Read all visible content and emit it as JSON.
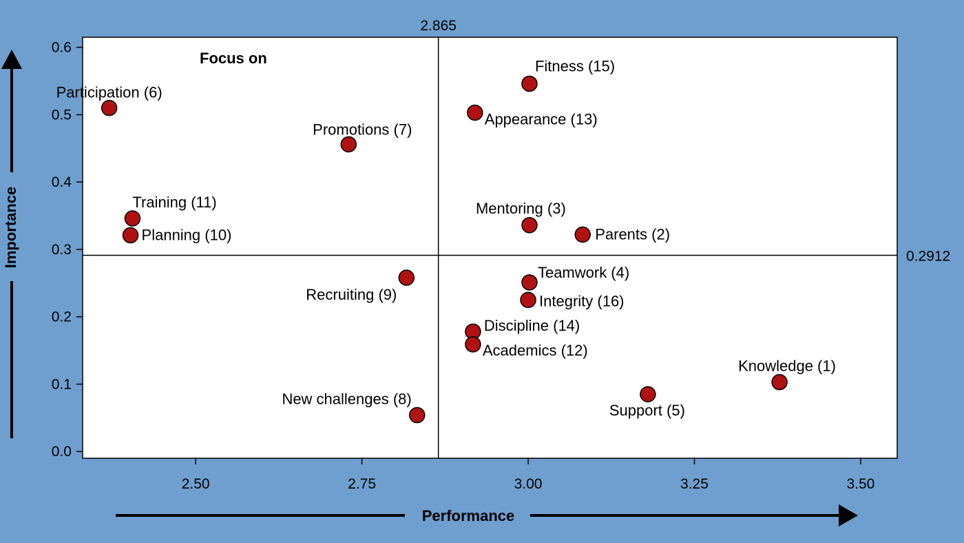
{
  "chart_data": {
    "type": "scatter",
    "xlabel": "Performance",
    "ylabel": "Importance",
    "xlim": [
      2.33,
      3.555
    ],
    "ylim": [
      -0.01,
      0.615
    ],
    "x_ticks": [
      "2.50",
      "2.75",
      "3.00",
      "3.25",
      "3.50"
    ],
    "y_ticks": [
      "0.0",
      "0.1",
      "0.2",
      "0.3",
      "0.4",
      "0.5",
      "0.6"
    ],
    "x_ref": {
      "value": 2.865,
      "label": "2.865"
    },
    "y_ref": {
      "value": 0.2912,
      "label": "0.2912"
    },
    "quadrant_annotation": "Focus on",
    "point_color": "#b01212",
    "grid": false,
    "points": [
      {
        "label": "Participation (6)",
        "x": 2.37,
        "y": 0.51
      },
      {
        "label": "Promotions (7)",
        "x": 2.73,
        "y": 0.456
      },
      {
        "label": "Training (11)",
        "x": 2.405,
        "y": 0.346
      },
      {
        "label": "Planning (10)",
        "x": 2.402,
        "y": 0.321
      },
      {
        "label": "Fitness (15)",
        "x": 3.002,
        "y": 0.546
      },
      {
        "label": "Appearance (13)",
        "x": 2.92,
        "y": 0.503
      },
      {
        "label": "Mentoring (3)",
        "x": 3.002,
        "y": 0.336
      },
      {
        "label": "Parents (2)",
        "x": 3.082,
        "y": 0.322
      },
      {
        "label": "Recruiting (9)",
        "x": 2.817,
        "y": 0.258
      },
      {
        "label": "New challenges (8)",
        "x": 2.833,
        "y": 0.054
      },
      {
        "label": "Teamwork (4)",
        "x": 3.002,
        "y": 0.251
      },
      {
        "label": "Integrity (16)",
        "x": 3.0,
        "y": 0.225
      },
      {
        "label": "Discipline (14)",
        "x": 2.917,
        "y": 0.178
      },
      {
        "label": "Academics (12)",
        "x": 2.917,
        "y": 0.159
      },
      {
        "label": "Knowledge (1)",
        "x": 3.378,
        "y": 0.103
      },
      {
        "label": "Support (5)",
        "x": 3.18,
        "y": 0.085
      }
    ]
  }
}
